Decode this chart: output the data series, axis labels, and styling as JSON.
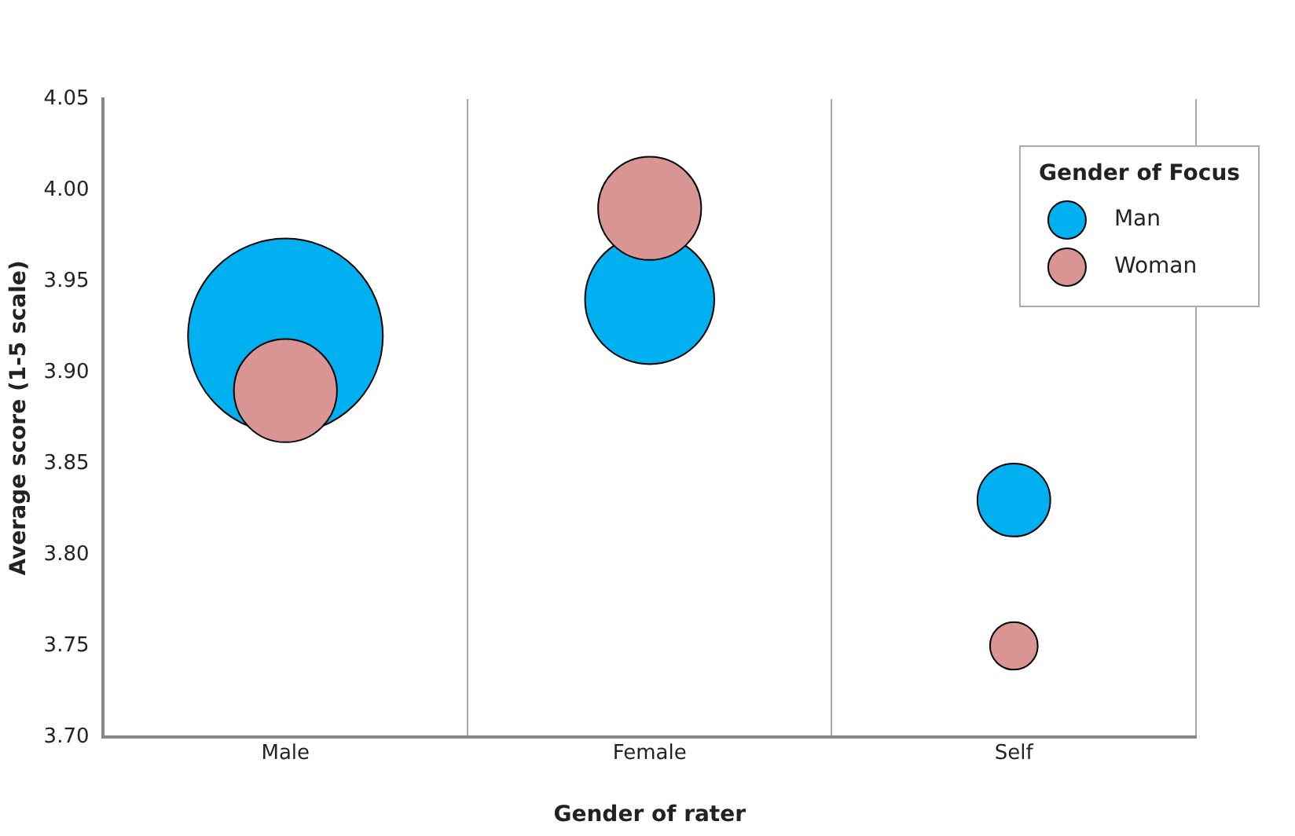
{
  "chart_data": {
    "type": "bubble",
    "xlabel": "Gender of rater",
    "ylabel": "Average score (1-5 scale)",
    "legend_title": "Gender of Focus",
    "categories": [
      "Male",
      "Female",
      "Self"
    ],
    "series": [
      {
        "name": "Man",
        "color": "#00b0f0",
        "values": [
          3.92,
          3.94,
          3.83
        ],
        "sizes": [
          1,
          0.44,
          0.14
        ]
      },
      {
        "name": "Woman",
        "color": "#d99594",
        "values": [
          3.89,
          3.99,
          3.75
        ],
        "sizes": [
          0.28,
          0.28,
          0.06
        ]
      }
    ],
    "ylim": [
      3.7,
      4.05
    ],
    "yticks": [
      {
        "value": 3.7,
        "label": "3.70"
      },
      3.75,
      {
        "value": 3.8,
        "label": "3.80"
      },
      3.85,
      {
        "value": 3.9,
        "label": "3.90"
      },
      3.95,
      {
        "value": 4.0,
        "label": "4.00"
      },
      4.05
    ],
    "grid": "x",
    "legend": "top right"
  }
}
